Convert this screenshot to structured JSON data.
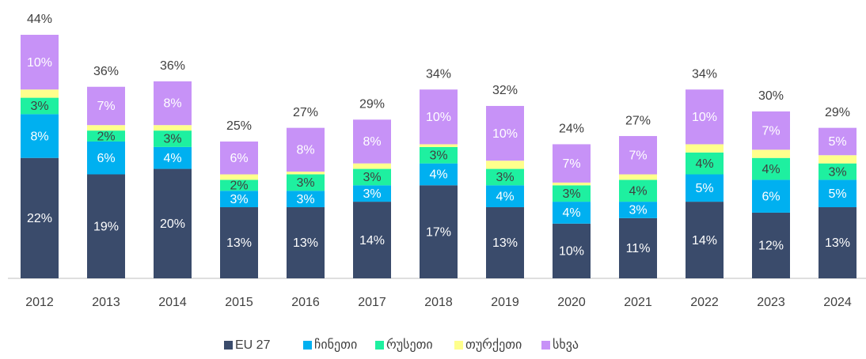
{
  "chart_data": {
    "type": "stacked_bar",
    "categories": [
      "2012",
      "2013",
      "2014",
      "2015",
      "2016",
      "2017",
      "2018",
      "2019",
      "2020",
      "2021",
      "2022",
      "2023",
      "2024"
    ],
    "series": [
      {
        "name": "EU 27",
        "color": "#3a4b6b",
        "values": [
          22,
          19,
          20,
          13,
          13,
          14,
          17,
          13,
          10,
          11,
          14,
          12,
          13
        ],
        "value_labels": [
          "22%",
          "19%",
          "20%",
          "13%",
          "13%",
          "14%",
          "17%",
          "13%",
          "10%",
          "11%",
          "14%",
          "12%",
          "13%"
        ]
      },
      {
        "name": "ჩინეთი",
        "color": "#00b0f0",
        "values": [
          8,
          6,
          4,
          3,
          3,
          3,
          4,
          4,
          4,
          3,
          5,
          6,
          5
        ],
        "value_labels": [
          "8%",
          "6%",
          "4%",
          "3%",
          "3%",
          "3%",
          "4%",
          "4%",
          "4%",
          "3%",
          "5%",
          "6%",
          "5%"
        ]
      },
      {
        "name": "რუსეთი",
        "color": "#1ef0a0",
        "values": [
          3,
          2,
          3,
          2,
          3,
          3,
          3,
          3,
          3,
          4,
          4,
          4,
          3
        ],
        "value_labels": [
          "3%",
          "2%",
          "3%",
          "2%",
          "3%",
          "3%",
          "3%",
          "3%",
          "3%",
          "4%",
          "4%",
          "4%",
          "3%"
        ]
      },
      {
        "name": "თურქეთი",
        "color": "#ffff8c",
        "values": [
          1.5,
          1,
          1,
          1,
          0.5,
          1,
          0.5,
          1.5,
          0.5,
          1,
          1.5,
          1.5,
          1.5
        ]
      },
      {
        "name": "სხვა",
        "color": "#c792f7",
        "values": [
          10,
          7,
          8,
          6,
          8,
          8,
          10,
          10,
          7,
          7,
          10,
          7,
          5
        ],
        "value_labels": [
          "10%",
          "7%",
          "8%",
          "6%",
          "8%",
          "8%",
          "10%",
          "10%",
          "7%",
          "7%",
          "10%",
          "7%",
          "5%"
        ]
      }
    ],
    "totals": [
      44,
      36,
      36,
      25,
      27,
      29,
      34,
      32,
      24,
      27,
      34,
      30,
      29
    ],
    "total_labels": [
      "44%",
      "36%",
      "36%",
      "25%",
      "27%",
      "29%",
      "34%",
      "32%",
      "24%",
      "27%",
      "34%",
      "30%",
      "29%"
    ],
    "legend": "bottom"
  }
}
